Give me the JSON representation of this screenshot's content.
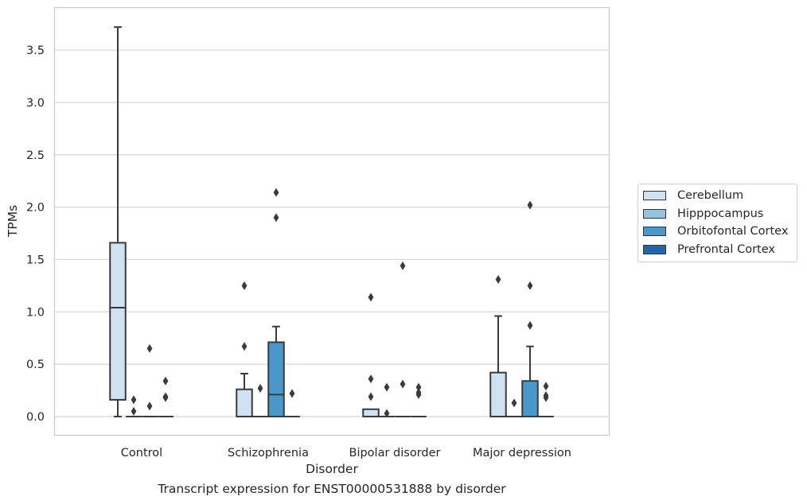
{
  "caption": "Transcript expression for ENST00000531888 by disorder",
  "chart_data": {
    "type": "box",
    "xlabel": "Disorder",
    "ylabel": "TPMs",
    "categories": [
      "Control",
      "Schizophrenia",
      "Bipolar disorder",
      "Major depression"
    ],
    "ylim": [
      -0.18,
      3.9
    ],
    "yticks": [
      0.0,
      0.5,
      1.0,
      1.5,
      2.0,
      2.5,
      3.0,
      3.5
    ],
    "ytick_labels": [
      "0.0",
      "0.5",
      "1.0",
      "1.5",
      "2.0",
      "2.5",
      "3.0",
      "3.5"
    ],
    "grid": "horizontal",
    "legend_position": "right",
    "series": [
      {
        "name": "Cerebellum",
        "color": "#d0e1f2",
        "boxes": [
          {
            "q1": 0.16,
            "median": 1.04,
            "q3": 1.66,
            "whislo": 0.0,
            "whishi": 3.72,
            "fliers": []
          },
          {
            "q1": 0.0,
            "median": 0.0,
            "q3": 0.26,
            "whislo": 0.0,
            "whishi": 0.41,
            "fliers": [
              0.67,
              1.25
            ]
          },
          {
            "q1": 0.0,
            "median": 0.0,
            "q3": 0.07,
            "whislo": 0.0,
            "whishi": 0.07,
            "fliers": [
              0.19,
              0.36,
              1.14
            ]
          },
          {
            "q1": 0.0,
            "median": 0.0,
            "q3": 0.42,
            "whislo": 0.0,
            "whishi": 0.96,
            "fliers": [
              1.31
            ]
          }
        ]
      },
      {
        "name": "Hipppocampus",
        "color": "#94c4df",
        "boxes": [
          {
            "q1": 0.0,
            "median": 0.0,
            "q3": 0.0,
            "whislo": 0.0,
            "whishi": 0.0,
            "fliers": [
              0.05,
              0.16
            ]
          },
          {
            "q1": 0.0,
            "median": 0.0,
            "q3": 0.0,
            "whislo": 0.0,
            "whishi": 0.0,
            "fliers": [
              0.27
            ]
          },
          {
            "q1": 0.0,
            "median": 0.0,
            "q3": 0.0,
            "whislo": 0.0,
            "whishi": 0.0,
            "fliers": [
              0.03,
              0.28
            ]
          },
          {
            "q1": 0.0,
            "median": 0.0,
            "q3": 0.0,
            "whislo": 0.0,
            "whishi": 0.0,
            "fliers": [
              0.13
            ]
          }
        ]
      },
      {
        "name": "Orbitofontal Cortex",
        "color": "#4a98c9",
        "boxes": [
          {
            "q1": 0.0,
            "median": 0.0,
            "q3": 0.0,
            "whislo": 0.0,
            "whishi": 0.0,
            "fliers": [
              0.1,
              0.65
            ]
          },
          {
            "q1": 0.0,
            "median": 0.21,
            "q3": 0.71,
            "whislo": 0.0,
            "whishi": 0.86,
            "fliers": [
              1.9,
              2.14
            ]
          },
          {
            "q1": 0.0,
            "median": 0.0,
            "q3": 0.0,
            "whislo": 0.0,
            "whishi": 0.0,
            "fliers": [
              0.31,
              1.44
            ]
          },
          {
            "q1": 0.0,
            "median": 0.0,
            "q3": 0.34,
            "whislo": 0.0,
            "whishi": 0.67,
            "fliers": [
              0.87,
              1.25,
              2.02
            ]
          }
        ]
      },
      {
        "name": "Prefrontal Cortex",
        "color": "#2166ac",
        "boxes": [
          {
            "q1": 0.0,
            "median": 0.0,
            "q3": 0.0,
            "whislo": 0.0,
            "whishi": 0.0,
            "fliers": [
              0.18,
              0.19,
              0.34
            ]
          },
          {
            "q1": 0.0,
            "median": 0.0,
            "q3": 0.0,
            "whislo": 0.0,
            "whishi": 0.0,
            "fliers": [
              0.22
            ]
          },
          {
            "q1": 0.0,
            "median": 0.0,
            "q3": 0.0,
            "whislo": 0.0,
            "whishi": 0.0,
            "fliers": [
              0.21,
              0.23,
              0.28
            ]
          },
          {
            "q1": 0.0,
            "median": 0.0,
            "q3": 0.0,
            "whislo": 0.0,
            "whishi": 0.0,
            "fliers": [
              0.18,
              0.2,
              0.29
            ]
          }
        ]
      }
    ]
  }
}
